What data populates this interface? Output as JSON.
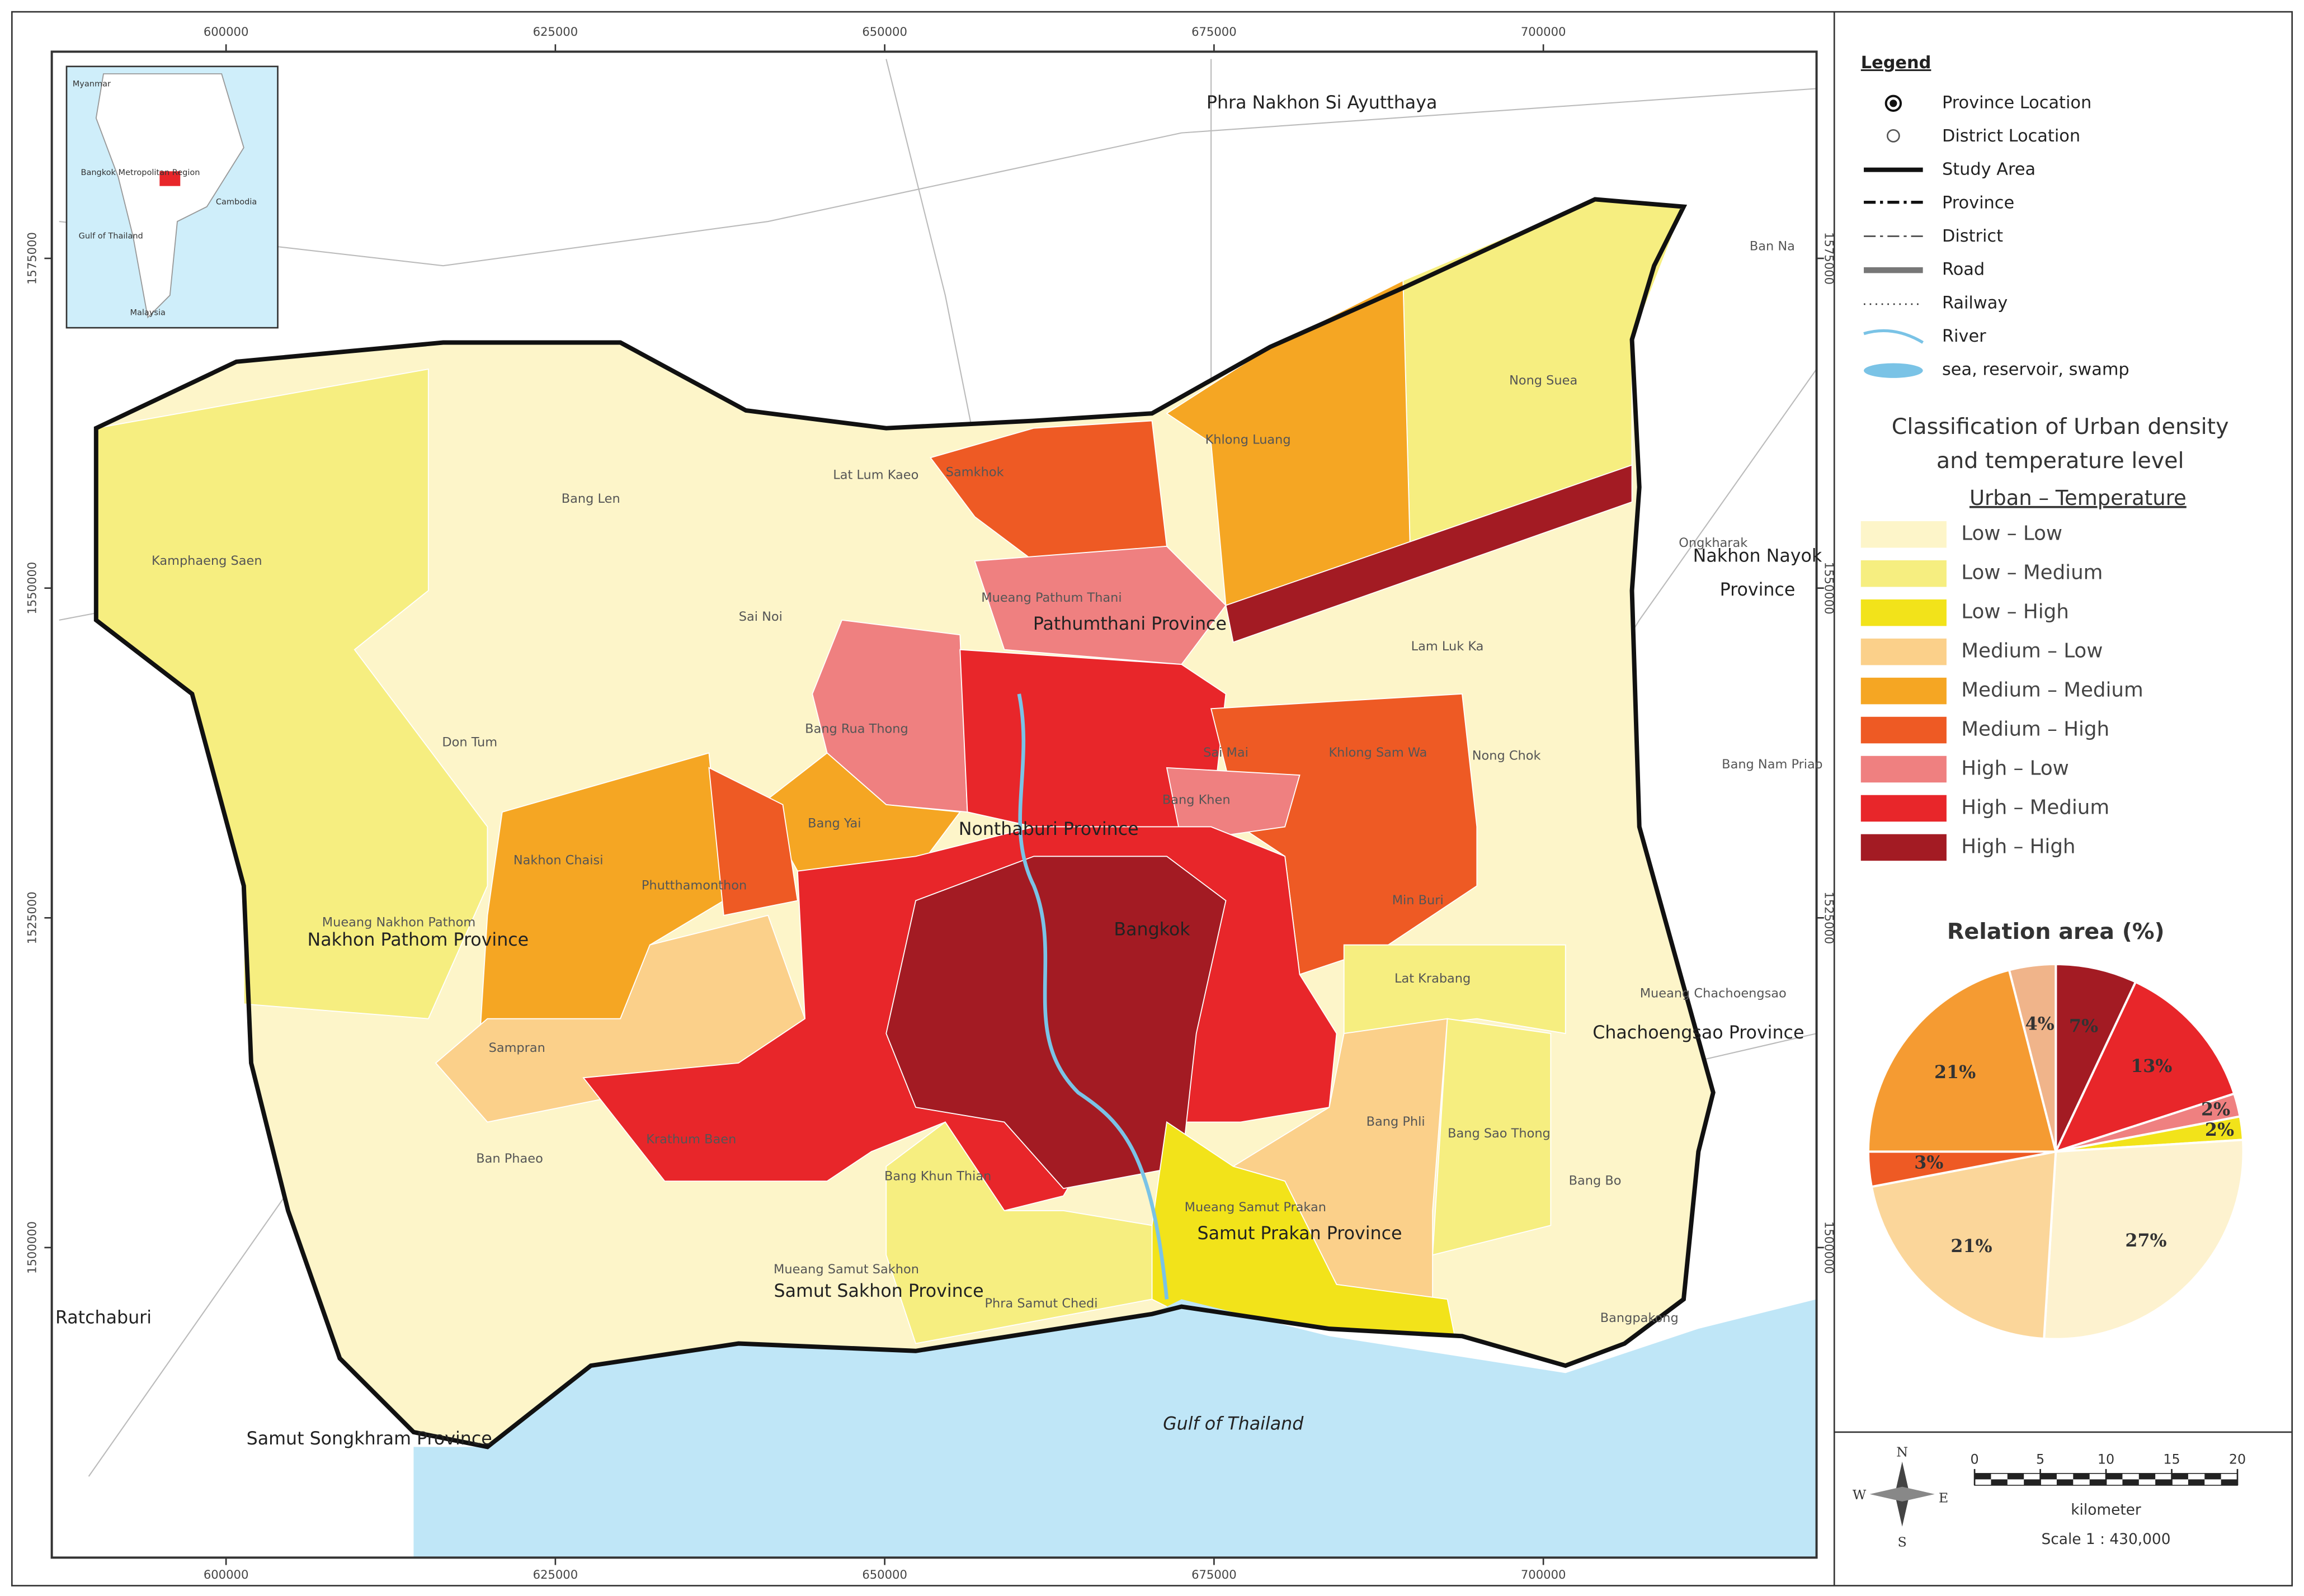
{
  "map": {
    "x_ticks": [
      600000,
      625000,
      650000,
      675000,
      700000
    ],
    "y_ticks": [
      1575000,
      1550000,
      1525000,
      1500000
    ],
    "labels": [
      "Phra Nakhon Si Ayutthaya",
      "Ban Na",
      "Nong Suea",
      "Khlong Luang",
      "Samkhok",
      "Lat Lum Kaeo",
      "Bang Len",
      "Kamphaeng Saen",
      "Ongkharak",
      "Nakhon Nayok",
      "Province",
      "Mueang Pathum Thani",
      "Pathumthani Province",
      "Sai Noi",
      "Lam Luk Ka",
      "Bang Rua Thong",
      "Don Tum",
      "Nong Chok",
      "Bang Nam Priao",
      "Sai Mai",
      "Khlong Sam Wa",
      "Bang Khen",
      "Bang Yai",
      "Nonthaburi Province",
      "Nakhon Chaisi",
      "Phutthamonthon",
      "Min Buri",
      "Mueang Nakhon Pathom",
      "Nakhon Pathom Province",
      "Bangkok",
      "Lat Krabang",
      "Mueang Chachoengsao",
      "Chachoengsao Province",
      "Sampran",
      "Bang Phli",
      "Bang Sao Thong",
      "Krathum Baen",
      "Ban Phaeo",
      "Bang Khun Thian",
      "Bang Bo",
      "Mueang Samut Prakan",
      "Samut Prakan Province",
      "Mueang Samut Sakhon",
      "Samut Sakhon Province",
      "Phra Samut Chedi",
      "Bangpakong",
      "Ratchaburi",
      "Gulf of Thailand",
      "Samut Songkhram Province"
    ],
    "inset_labels": [
      "Myanmar",
      "Bangkok Metropolitan Region",
      "Cambodia",
      "Gulf of Thailand",
      "Malaysia"
    ]
  },
  "legend": {
    "title": "Legend",
    "items": [
      "Province Location",
      "District Location",
      "Study Area",
      "Province",
      "District",
      "Road",
      "Railway",
      "River",
      "sea, reservoir, swamp"
    ]
  },
  "classification": {
    "title": [
      "Classification of  Urban density",
      "and temperature level"
    ],
    "subtitle": "Urban – Temperature",
    "classes": [
      {
        "name": "Low – Low",
        "color": "#fdf5c9"
      },
      {
        "name": "Low – Medium",
        "color": "#f6ee80"
      },
      {
        "name": "Low – High",
        "color": "#f2e31a"
      },
      {
        "name": "Medium – Low",
        "color": "#fbd08a"
      },
      {
        "name": "Medium – Medium",
        "color": "#f5a623"
      },
      {
        "name": "Medium – High",
        "color": "#ee5a24"
      },
      {
        "name": "High – Low",
        "color": "#ef8080"
      },
      {
        "name": "High – Medium",
        "color": "#e8262a"
      },
      {
        "name": "High – High",
        "color": "#a31b23"
      }
    ]
  },
  "chart_data": {
    "type": "pie",
    "title": "Relation area (%)",
    "values": [
      7,
      13,
      2,
      2,
      27,
      21,
      3,
      21,
      4
    ],
    "value_labels": [
      "7%",
      "13%",
      "2%",
      "2%",
      "27%",
      "21%",
      "3%",
      "21%",
      "4%"
    ],
    "colors": [
      "#a31b23",
      "#e8262a",
      "#ef8080",
      "#f2e31a",
      "#fdf2cf",
      "#fbd69a",
      "#ee5a24",
      "#f59b32",
      "#f0b48a"
    ]
  },
  "scale": {
    "ticks": [
      0,
      5,
      10,
      15,
      20
    ],
    "unit": "kilometer",
    "ratio": "Scale 1 : 430,000"
  },
  "compass": {
    "n": "N",
    "s": "S",
    "e": "E",
    "w": "W"
  }
}
